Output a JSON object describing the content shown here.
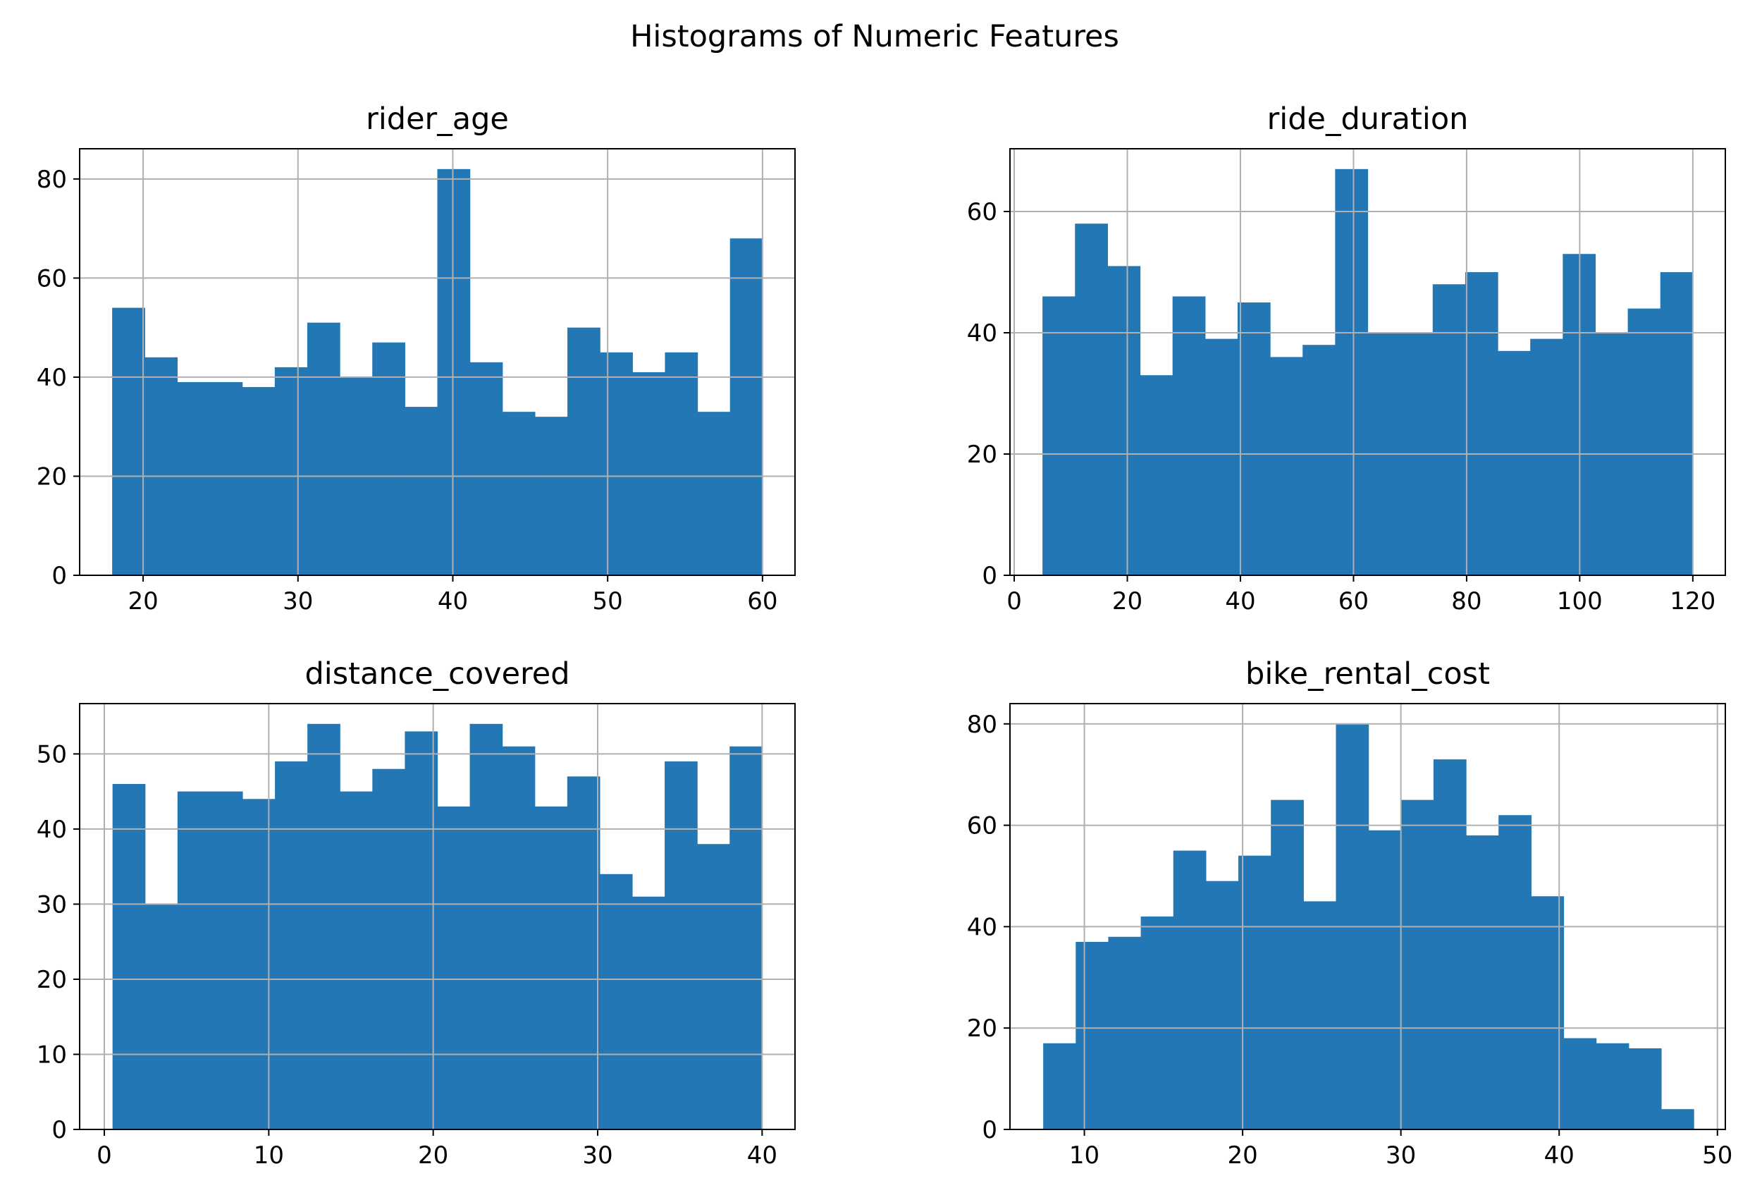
{
  "figure": {
    "title": "Histograms of Numeric Features"
  },
  "colors": {
    "bar": "#2377b4",
    "grid": "#b0b0b0",
    "axes": "#000000",
    "background": "#ffffff"
  },
  "chart_data": [
    {
      "type": "bar",
      "title": "rider_age",
      "xlabel": "",
      "ylabel": "",
      "grid": true,
      "xlim": [
        15.9,
        62.1
      ],
      "ylim": [
        0,
        86.1
      ],
      "xticks": [
        20,
        30,
        40,
        50,
        60
      ],
      "yticks": [
        0,
        20,
        40,
        60,
        80
      ],
      "bin_edges": [
        18,
        20.1,
        22.2,
        24.3,
        26.4,
        28.5,
        30.6,
        32.7,
        34.8,
        36.9,
        39,
        41.1,
        43.2,
        45.3,
        47.4,
        49.5,
        51.6,
        53.7,
        55.8,
        57.9,
        60
      ],
      "values": [
        54,
        44,
        39,
        39,
        38,
        42,
        51,
        40,
        47,
        34,
        82,
        43,
        33,
        32,
        50,
        45,
        41,
        45,
        33,
        68
      ]
    },
    {
      "type": "bar",
      "title": "ride_duration",
      "xlabel": "",
      "ylabel": "",
      "grid": true,
      "xlim": [
        -0.75,
        125.75
      ],
      "ylim": [
        0,
        70.35
      ],
      "xticks": [
        0,
        20,
        40,
        60,
        80,
        100,
        120
      ],
      "yticks": [
        0,
        20,
        40,
        60
      ],
      "bin_edges": [
        5,
        10.75,
        16.5,
        22.25,
        28,
        33.75,
        39.5,
        45.25,
        51,
        56.75,
        62.5,
        68.25,
        74,
        79.75,
        85.5,
        91.25,
        97,
        102.75,
        108.5,
        114.25,
        120
      ],
      "values": [
        46,
        58,
        51,
        33,
        46,
        39,
        45,
        36,
        38,
        67,
        40,
        40,
        48,
        50,
        37,
        39,
        53,
        40,
        44,
        50
      ]
    },
    {
      "type": "bar",
      "title": "distance_covered",
      "xlabel": "",
      "ylabel": "",
      "grid": true,
      "xlim": [
        -1.5,
        42.0
      ],
      "ylim": [
        0,
        56.7
      ],
      "xticks": [
        0,
        10,
        20,
        30,
        40
      ],
      "yticks": [
        0,
        10,
        20,
        30,
        40,
        50
      ],
      "bin_edges": [
        0.5,
        2.475,
        4.45,
        6.425,
        8.4,
        10.375,
        12.35,
        14.325,
        16.3,
        18.275,
        20.25,
        22.225,
        24.2,
        26.175,
        28.15,
        30.125,
        32.1,
        34.075,
        36.05,
        38.025,
        40
      ],
      "values": [
        46,
        30,
        45,
        45,
        44,
        49,
        54,
        45,
        48,
        53,
        43,
        54,
        51,
        43,
        47,
        34,
        31,
        49,
        38,
        51
      ]
    },
    {
      "type": "bar",
      "title": "bike_rental_cost",
      "xlabel": "",
      "ylabel": "",
      "grid": true,
      "xlim": [
        5.3,
        50.5
      ],
      "ylim": [
        0,
        84.0
      ],
      "xticks": [
        10,
        20,
        30,
        40,
        50
      ],
      "yticks": [
        0,
        20,
        40,
        60,
        80
      ],
      "bin_edges": [
        7.4,
        9.455,
        11.51,
        13.565,
        15.62,
        17.675,
        19.73,
        21.785,
        23.84,
        25.895,
        27.95,
        30.005,
        32.06,
        34.115,
        36.17,
        38.225,
        40.28,
        42.335,
        44.39,
        46.445,
        48.5
      ],
      "values": [
        17,
        37,
        38,
        42,
        55,
        49,
        54,
        65,
        45,
        80,
        59,
        65,
        73,
        58,
        62,
        46,
        18,
        17,
        16,
        4
      ]
    }
  ]
}
